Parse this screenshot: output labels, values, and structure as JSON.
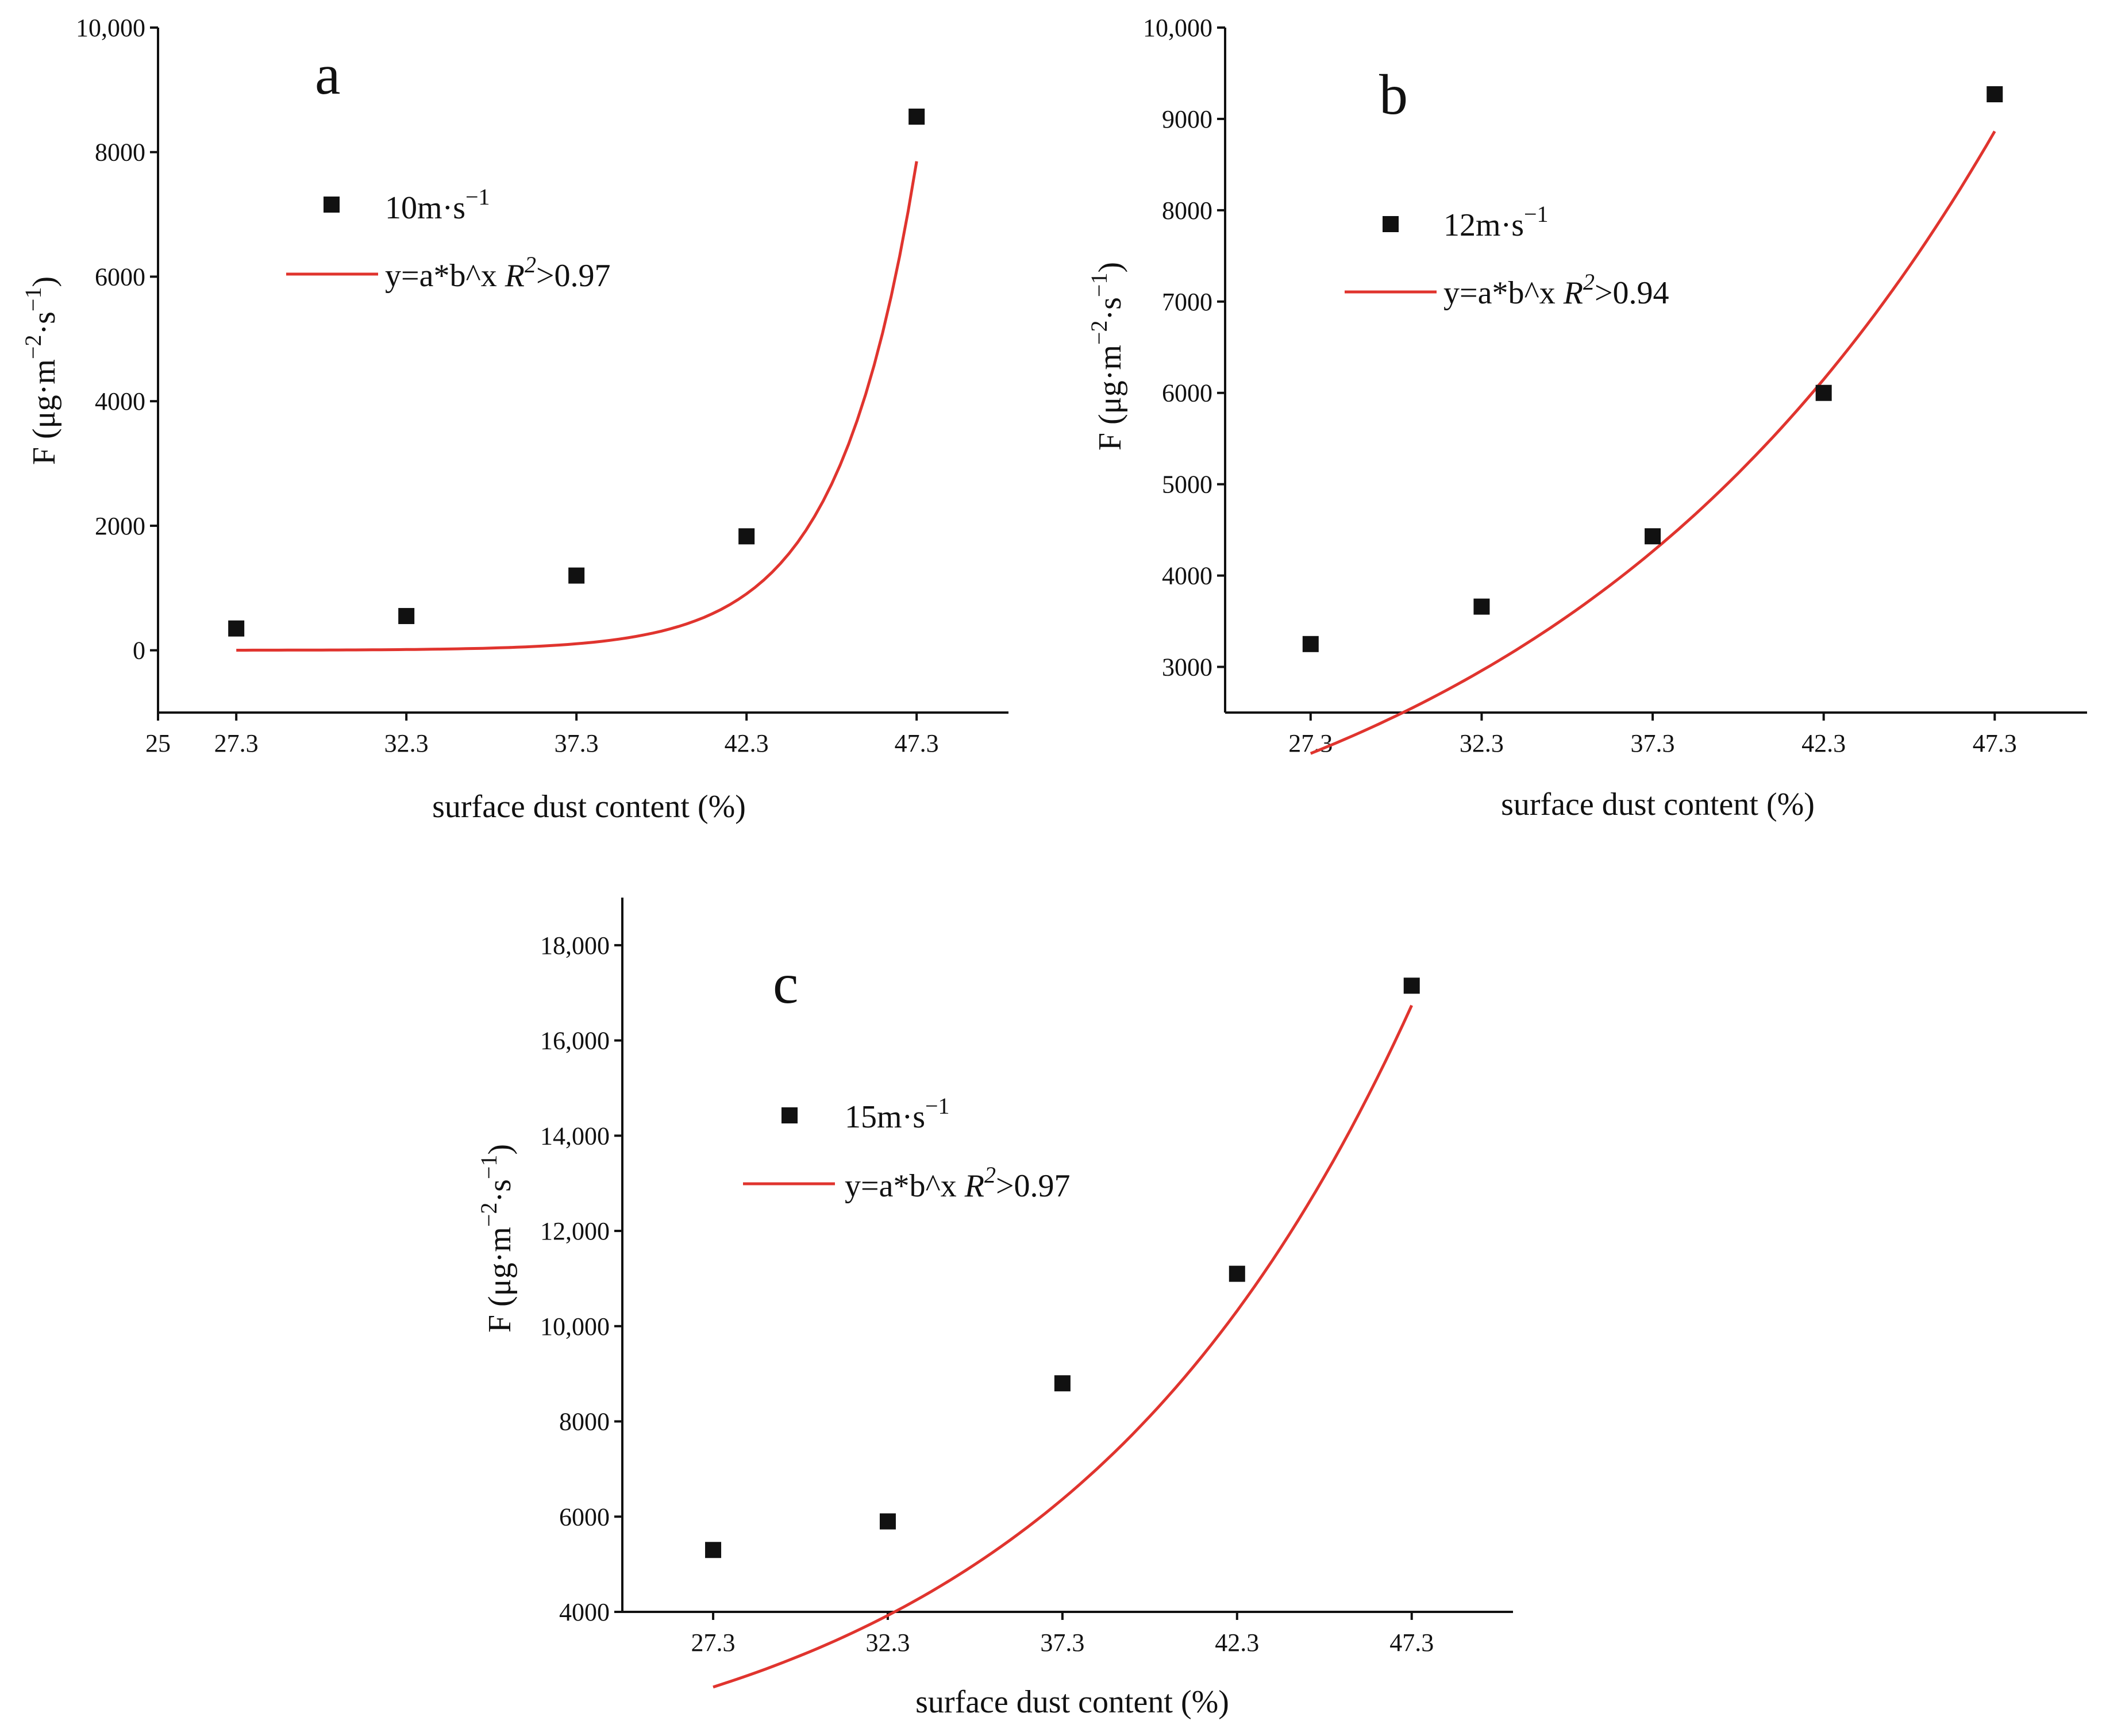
{
  "figure": {
    "colors": {
      "marker": "#111111",
      "fit": "#e0342e",
      "axis": "#111111"
    }
  },
  "chart_data": [
    {
      "id": "a",
      "type": "scatter",
      "panel_label": "a",
      "xlabel": "surface dust content (%)",
      "ylabel": "F (μg·m",
      "ylabel_sup1": "−2",
      "ylabel_mid": "·s",
      "ylabel_sup2": "−1",
      "ylabel_close": ")",
      "xlim": [
        25,
        50
      ],
      "ylim": [
        -1000,
        10000
      ],
      "xticks": [
        25,
        27.3,
        32.3,
        37.3,
        42.3,
        47.3
      ],
      "xtick_labels": [
        "25",
        "27.3",
        "32.3",
        "37.3",
        "42.3",
        "47.3"
      ],
      "yticks": [
        0,
        2000,
        4000,
        6000,
        8000,
        10000
      ],
      "ytick_labels": [
        "0",
        "2000",
        "4000",
        "6000",
        "8000",
        "10,000"
      ],
      "series": [
        {
          "name": "10m·s",
          "name_sup": "−1",
          "marker": "square",
          "x": [
            27.3,
            32.3,
            37.3,
            42.3,
            47.3
          ],
          "y": [
            350,
            550,
            1200,
            1830,
            8570
          ]
        }
      ],
      "fit": {
        "label_prefix": "y=a*b^x ",
        "label_r": "R",
        "label_r_sup": "2",
        "label_suffix": ">0.97",
        "model": "exponential",
        "a": 1.06e-05,
        "b": 1.54,
        "x_range": [
          27.3,
          47.3
        ]
      }
    },
    {
      "id": "b",
      "type": "scatter",
      "panel_label": "b",
      "xlabel": "surface dust content (%)",
      "ylabel": "F (μg·m",
      "ylabel_sup1": "−2",
      "ylabel_mid": "·s",
      "ylabel_sup2": "−1",
      "ylabel_close": ")",
      "xlim": [
        24.8,
        50
      ],
      "ylim": [
        2500,
        10000
      ],
      "xticks": [
        27.3,
        32.3,
        37.3,
        42.3,
        47.3
      ],
      "xtick_labels": [
        "27.3",
        "32.3",
        "37.3",
        "42.3",
        "47.3"
      ],
      "yticks": [
        3000,
        4000,
        5000,
        6000,
        7000,
        8000,
        9000,
        10000
      ],
      "ytick_labels": [
        "3000",
        "4000",
        "5000",
        "6000",
        "7000",
        "8000",
        "9000",
        "10,000"
      ],
      "series": [
        {
          "name": "12m·s",
          "name_sup": "−1",
          "marker": "square",
          "x": [
            27.3,
            32.3,
            37.3,
            42.3,
            47.3
          ],
          "y": [
            3250,
            3660,
            4430,
            6000,
            9270
          ]
        }
      ],
      "fit": {
        "label_prefix": "y=a*b^x ",
        "label_r": "R",
        "label_r_sup": "2",
        "label_suffix": ">0.94",
        "model": "exponential",
        "a": 278.5,
        "b": 1.0759,
        "x_range": [
          27.3,
          47.3
        ]
      }
    },
    {
      "id": "c",
      "type": "scatter",
      "panel_label": "c",
      "xlabel": "surface dust content (%)",
      "ylabel": "F (μg·m",
      "ylabel_sup1": "−2",
      "ylabel_mid": "·s",
      "ylabel_sup2": "−1",
      "ylabel_close": ")",
      "xlim": [
        24.7,
        50.2
      ],
      "ylim": [
        4000,
        19000
      ],
      "xticks": [
        27.3,
        32.3,
        37.3,
        42.3,
        47.3
      ],
      "xtick_labels": [
        "27.3",
        "32.3",
        "37.3",
        "42.3",
        "47.3"
      ],
      "yticks": [
        4000,
        6000,
        8000,
        10000,
        12000,
        14000,
        16000,
        18000
      ],
      "ytick_labels": [
        "4000",
        "6000",
        "8000",
        "10,000",
        "12,000",
        "14,000",
        "16,000",
        "18,000"
      ],
      "series": [
        {
          "name": "15m·s",
          "name_sup": "−1",
          "marker": "square",
          "x": [
            27.3,
            32.3,
            37.3,
            42.3,
            47.3
          ],
          "y": [
            5300,
            5900,
            8800,
            11100,
            17150
          ]
        }
      ],
      "fit": {
        "label_prefix": "y=a*b^x ",
        "label_r": "R",
        "label_r_sup": "2",
        "label_suffix": ">0.97",
        "model": "exponential",
        "a": 172.9,
        "b": 1.1015,
        "x_range": [
          27.3,
          47.3
        ]
      }
    }
  ]
}
